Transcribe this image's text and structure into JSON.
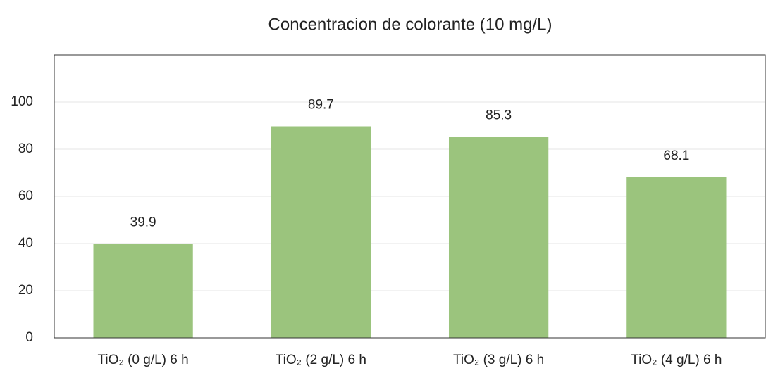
{
  "chart_data": {
    "type": "bar",
    "title": "Concentracion de colorante (10 mg/L)",
    "categories": [
      "TiO₂ (0 g/L) 6 h",
      "TiO₂ (2 g/L) 6 h",
      "TiO₂ (3 g/L) 6 h",
      "TiO₂ (4 g/L) 6 h"
    ],
    "values": [
      39.9,
      89.7,
      85.3,
      68.1
    ],
    "color": "#9bc47d",
    "ylim": [
      0,
      120
    ],
    "yticks": [
      0,
      20,
      40,
      60,
      80,
      100
    ],
    "grid": true
  }
}
